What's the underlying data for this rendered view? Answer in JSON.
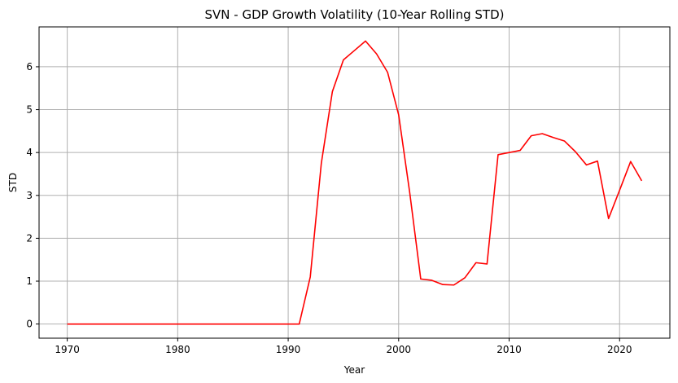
{
  "chart_data": {
    "type": "line",
    "title": "SVN - GDP Growth Volatility (10-Year Rolling STD)",
    "xlabel": "Year",
    "ylabel": "STD",
    "xlim": [
      1967.45,
      2024.55
    ],
    "ylim": [
      -0.33,
      6.93
    ],
    "xticks": [
      1970,
      1980,
      1990,
      2000,
      2010,
      2020
    ],
    "yticks": [
      0,
      1,
      2,
      3,
      4,
      5,
      6
    ],
    "grid": true,
    "color": "#ff0000",
    "x": [
      1970,
      1971,
      1972,
      1973,
      1974,
      1975,
      1976,
      1977,
      1978,
      1979,
      1980,
      1981,
      1982,
      1983,
      1984,
      1985,
      1986,
      1987,
      1988,
      1989,
      1990,
      1991,
      1992,
      1993,
      1994,
      1995,
      1996,
      1997,
      1998,
      1999,
      2000,
      2001,
      2002,
      2003,
      2004,
      2005,
      2006,
      2007,
      2008,
      2009,
      2010,
      2011,
      2012,
      2013,
      2014,
      2015,
      2016,
      2017,
      2018,
      2019,
      2020,
      2021,
      2022
    ],
    "y": [
      0,
      0,
      0,
      0,
      0,
      0,
      0,
      0,
      0,
      0,
      0,
      0,
      0,
      0,
      0,
      0,
      0,
      0,
      0,
      0,
      0,
      0,
      1.1,
      3.75,
      5.42,
      6.16,
      6.38,
      6.6,
      6.3,
      5.87,
      4.88,
      3.07,
      1.05,
      1.02,
      0.92,
      0.91,
      1.08,
      1.43,
      1.4,
      3.95,
      4.0,
      4.05,
      4.39,
      4.44,
      4.35,
      4.27,
      4.02,
      3.71,
      3.8,
      2.46,
      3.12,
      3.79,
      3.34
    ]
  }
}
